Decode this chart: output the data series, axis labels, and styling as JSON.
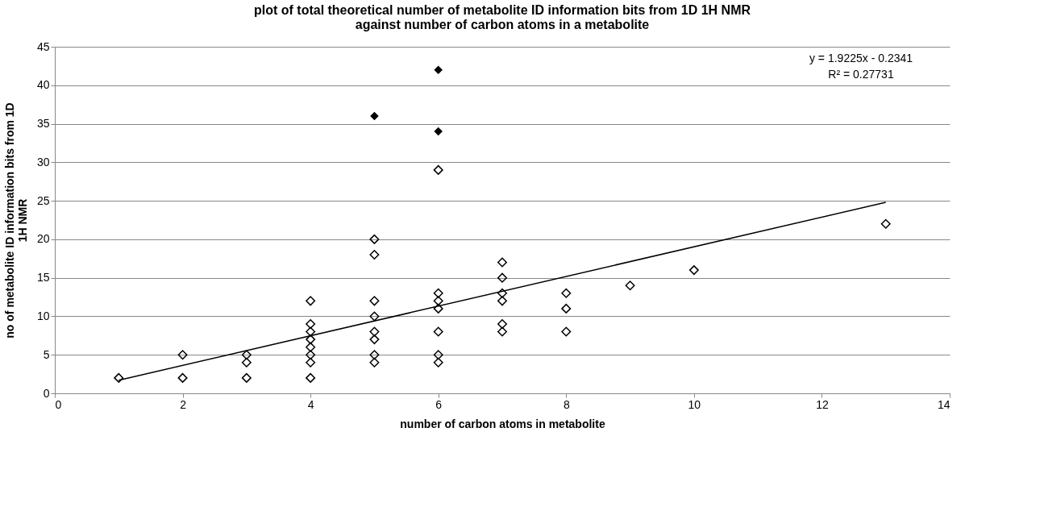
{
  "chart_data": {
    "type": "scatter",
    "title": "plot of total theoretical number of metabolite ID information bits from 1D 1H NMR\nagainst number of carbon atoms in a metabolite",
    "xlabel": "number of carbon atoms in metabolite",
    "ylabel": "no of metabolite ID information bits from 1D\n1H NMR",
    "grid": "y",
    "xlim": [
      0,
      14
    ],
    "xticks": [
      0,
      2,
      4,
      6,
      8,
      10,
      12,
      14
    ],
    "ylim": [
      0,
      45
    ],
    "yticks": [
      0,
      5,
      10,
      15,
      20,
      25,
      30,
      35,
      40,
      45
    ],
    "annotations": [
      "y = 1.9225x - 0.2341\nR² = 0.27731"
    ],
    "series": [
      {
        "marker": "diamond",
        "color": "#000000",
        "x": [
          1,
          2,
          2,
          3,
          3,
          3,
          4,
          4,
          4,
          4,
          4,
          4,
          4,
          4,
          5,
          5,
          5,
          5,
          5,
          5,
          5,
          5,
          6,
          6,
          6,
          6,
          6,
          6,
          6,
          7,
          7,
          7,
          7,
          7,
          7,
          8,
          8,
          8,
          9,
          10,
          13
        ],
        "values": [
          2,
          5,
          2,
          5,
          4,
          2,
          12,
          9,
          8,
          7,
          6,
          5,
          4,
          2,
          20,
          18,
          12,
          10,
          8,
          7,
          5,
          4,
          29,
          13,
          12,
          11,
          8,
          5,
          4,
          17,
          15,
          13,
          12,
          9,
          8,
          13,
          11,
          8,
          14,
          16,
          22
        ]
      },
      {
        "marker": "diamond",
        "color": "#000000",
        "x": [
          5,
          6,
          6
        ],
        "values": [
          36,
          42,
          34
        ]
      },
      {
        "type": "line",
        "marker": "none",
        "color": "#000000",
        "x": [
          1,
          13
        ],
        "values": [
          1.7,
          24.8
        ]
      }
    ]
  }
}
